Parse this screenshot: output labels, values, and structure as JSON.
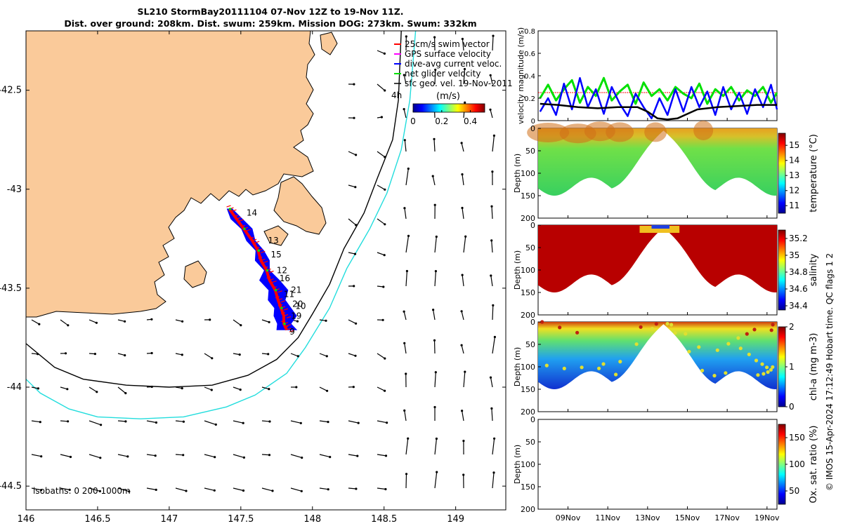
{
  "title": {
    "line1": "SL210 StormBay20111104 07-Nov 12Z to 19-Nov 11Z.",
    "line2": "Dist. over ground: 208km. Dist. swum: 259km. Mission DOG: 273km. Swum: 332km"
  },
  "watermark": "© IMOS 15-Apr-2024 17:12:49 Hobart time. QC flags 1  2",
  "colors": {
    "land": "#FACA9A",
    "track": "#FF0000",
    "dive_avg": "#0000FF",
    "net_velocity": "#00E000",
    "isobath_200": "#000000",
    "isobath_1000": "#22DDDD",
    "speed_threshold": "#FF0000"
  },
  "chart_data": [
    {
      "type": "map",
      "name": "glider track map",
      "xlim": [
        146,
        149.35
      ],
      "ylim": [
        -44.62,
        -42.2
      ],
      "x_ticks": [
        146,
        146.5,
        147,
        147.5,
        148,
        148.5,
        149
      ],
      "x_tick_labels": [
        "146",
        "146.5",
        "147",
        "147.5",
        "148",
        "148.5",
        "149"
      ],
      "y_ticks": [
        -42.5,
        -43,
        -43.5,
        -44,
        -44.5
      ],
      "y_tick_labels": [
        "-42.5",
        "-43",
        "-43.5",
        "-44",
        "-44.5"
      ],
      "legend": {
        "items": [
          {
            "label": "25cm/s swim vector",
            "color": "#FF0000"
          },
          {
            "label": "GPS surface velocity",
            "color": "#FF00FF"
          },
          {
            "label": "dive-avg current veloc.",
            "color": "#0000FF"
          },
          {
            "label": "net glider velocity",
            "color": "#00E000"
          },
          {
            "label": "sfc geo. vel. 19-Nov-2011",
            "color": "#000000"
          }
        ],
        "placement": "top-right",
        "vector_scale_label": "4h"
      },
      "colorbar": {
        "title": "(m/s)",
        "ticks": [
          0,
          0.2,
          0.4
        ],
        "tick_labels": [
          "0",
          "0.2",
          "0.4"
        ],
        "range": [
          0,
          0.5
        ]
      },
      "isobath_label": "isobaths: 0   200  1000m",
      "day_labels": [
        {
          "text": "14",
          "lon": 147.52,
          "lat": -43.12
        },
        {
          "text": "13",
          "lon": 147.67,
          "lat": -43.26
        },
        {
          "text": "15",
          "lon": 147.69,
          "lat": -43.33
        },
        {
          "text": "12",
          "lon": 147.73,
          "lat": -43.41
        },
        {
          "text": "16",
          "lon": 147.75,
          "lat": -43.45
        },
        {
          "text": "21",
          "lon": 147.83,
          "lat": -43.51
        },
        {
          "text": "11",
          "lon": 147.78,
          "lat": -43.53
        },
        {
          "text": "20",
          "lon": 147.84,
          "lat": -43.58
        },
        {
          "text": "10",
          "lon": 147.86,
          "lat": -43.59
        },
        {
          "text": "19",
          "lon": 147.83,
          "lat": -43.64
        },
        {
          "text": "9",
          "lon": 147.82,
          "lat": -43.72
        }
      ],
      "track": {
        "lon": [
          147.42,
          147.47,
          147.52,
          147.58,
          147.62,
          147.64,
          147.68,
          147.7,
          147.74,
          147.76,
          147.78,
          147.8,
          147.8,
          147.82
        ],
        "lat": [
          -43.1,
          -43.15,
          -43.2,
          -43.26,
          -43.31,
          -43.36,
          -43.41,
          -43.46,
          -43.51,
          -43.56,
          -43.6,
          -43.64,
          -43.68,
          -43.71
        ]
      },
      "isobath_200m": {
        "lon": [
          148.62,
          148.6,
          148.56,
          148.45,
          148.36,
          148.22,
          148.12,
          148.0,
          147.9,
          147.75,
          147.55,
          147.3,
          147.0,
          146.7,
          146.4,
          146.2,
          146.0
        ],
        "lat": [
          -42.2,
          -42.55,
          -42.75,
          -42.95,
          -43.12,
          -43.3,
          -43.48,
          -43.63,
          -43.75,
          -43.86,
          -43.94,
          -43.99,
          -44.0,
          -43.99,
          -43.96,
          -43.9,
          -43.78
        ]
      },
      "isobath_1000m": {
        "lon": [
          148.72,
          148.68,
          148.62,
          148.52,
          148.4,
          148.24,
          148.12,
          147.95,
          147.82,
          147.6,
          147.4,
          147.1,
          146.8,
          146.5,
          146.3,
          146.1,
          146.0
        ],
        "lat": [
          -42.2,
          -42.55,
          -42.8,
          -43.02,
          -43.2,
          -43.4,
          -43.6,
          -43.8,
          -43.93,
          -44.04,
          -44.1,
          -44.15,
          -44.16,
          -44.15,
          -44.11,
          -44.03,
          -43.96
        ]
      }
    },
    {
      "type": "line",
      "name": "velocity magnitude",
      "ylabel": "velocity magnitude (m/s)",
      "ylim": [
        0,
        0.8
      ],
      "y_ticks": [
        0,
        0.2,
        0.4,
        0.6,
        0.8
      ],
      "x_days_range": [
        7.5,
        19.5
      ],
      "threshold": 0.25,
      "series": [
        {
          "name": "net glider velocity",
          "color": "#00E000",
          "x": [
            7.6,
            8.0,
            8.4,
            8.8,
            9.2,
            9.6,
            10.0,
            10.4,
            10.8,
            11.2,
            11.6,
            12.0,
            12.4,
            12.8,
            13.2,
            13.6,
            14.0,
            14.4,
            14.8,
            15.2,
            15.6,
            16.0,
            16.4,
            16.8,
            17.2,
            17.6,
            18.0,
            18.4,
            18.8,
            19.2,
            19.5
          ],
          "y": [
            0.2,
            0.32,
            0.18,
            0.28,
            0.36,
            0.16,
            0.3,
            0.22,
            0.38,
            0.18,
            0.26,
            0.32,
            0.15,
            0.34,
            0.22,
            0.28,
            0.18,
            0.3,
            0.24,
            0.2,
            0.33,
            0.15,
            0.28,
            0.22,
            0.3,
            0.18,
            0.27,
            0.22,
            0.3,
            0.16,
            0.25
          ]
        },
        {
          "name": "dive-avg current",
          "color": "#0000FF",
          "x": [
            7.6,
            8.0,
            8.4,
            8.8,
            9.2,
            9.6,
            10.0,
            10.4,
            10.8,
            11.2,
            11.6,
            12.0,
            12.4,
            12.8,
            13.2,
            13.6,
            14.0,
            14.4,
            14.8,
            15.2,
            15.6,
            16.0,
            16.4,
            16.8,
            17.2,
            17.6,
            18.0,
            18.4,
            18.8,
            19.2,
            19.5
          ],
          "y": [
            0.08,
            0.2,
            0.05,
            0.33,
            0.1,
            0.38,
            0.12,
            0.28,
            0.06,
            0.3,
            0.15,
            0.04,
            0.24,
            0.12,
            0.02,
            0.2,
            0.05,
            0.28,
            0.08,
            0.3,
            0.12,
            0.26,
            0.05,
            0.3,
            0.1,
            0.25,
            0.06,
            0.28,
            0.12,
            0.32,
            0.1
          ]
        },
        {
          "name": "sfc geo. vel.",
          "color": "#000000",
          "x": [
            7.6,
            8.5,
            9.5,
            10.5,
            11.5,
            12.5,
            13.0,
            13.5,
            14.0,
            14.5,
            15.0,
            15.5,
            16.5,
            17.5,
            18.5,
            19.5
          ],
          "y": [
            0.15,
            0.14,
            0.12,
            0.11,
            0.12,
            0.12,
            0.08,
            0.02,
            0.01,
            0.02,
            0.06,
            0.1,
            0.12,
            0.13,
            0.14,
            0.14
          ]
        }
      ]
    },
    {
      "type": "heatmap",
      "name": "temperature section",
      "ylabel": "Depth (m)",
      "ylim": [
        0,
        200
      ],
      "y_ticks": [
        0,
        50,
        100,
        150,
        200
      ],
      "colorbar_label": "temperature (°C)",
      "clim": [
        10.5,
        15.8
      ],
      "colorbar_ticks": [
        11,
        12,
        13,
        14,
        15
      ]
    },
    {
      "type": "heatmap",
      "name": "salinity section",
      "ylabel": "Depth (m)",
      "ylim": [
        0,
        200
      ],
      "y_ticks": [
        0,
        50,
        100,
        150,
        200
      ],
      "colorbar_label": "salinity",
      "clim": [
        34.35,
        35.3
      ],
      "colorbar_ticks": [
        34.4,
        34.6,
        34.8,
        35,
        35.2
      ]
    },
    {
      "type": "heatmap",
      "name": "chlorophyll section",
      "ylabel": "Depth (m)",
      "ylim": [
        0,
        200
      ],
      "y_ticks": [
        0,
        50,
        100,
        150,
        200
      ],
      "colorbar_label": "chl-a (mg m-3)",
      "clim": [
        0,
        2
      ],
      "colorbar_ticks": [
        0,
        1,
        2
      ]
    },
    {
      "type": "heatmap",
      "name": "oxygen section",
      "ylabel": "Depth (m)",
      "ylim": [
        0,
        200
      ],
      "y_ticks": [
        0,
        50,
        100,
        150,
        200
      ],
      "colorbar_label": "Ox. sat. ratio (%)",
      "clim": [
        25,
        175
      ],
      "colorbar_ticks": [
        50,
        100,
        150
      ]
    },
    {
      "type": "axis",
      "name": "time axis",
      "x_days_range": [
        7.5,
        19.5
      ],
      "ticks": [
        9,
        11,
        13,
        15,
        17,
        19
      ],
      "tick_labels": [
        "09Nov",
        "11Nov",
        "13Nov",
        "15Nov",
        "17Nov",
        "19Nov"
      ]
    }
  ]
}
